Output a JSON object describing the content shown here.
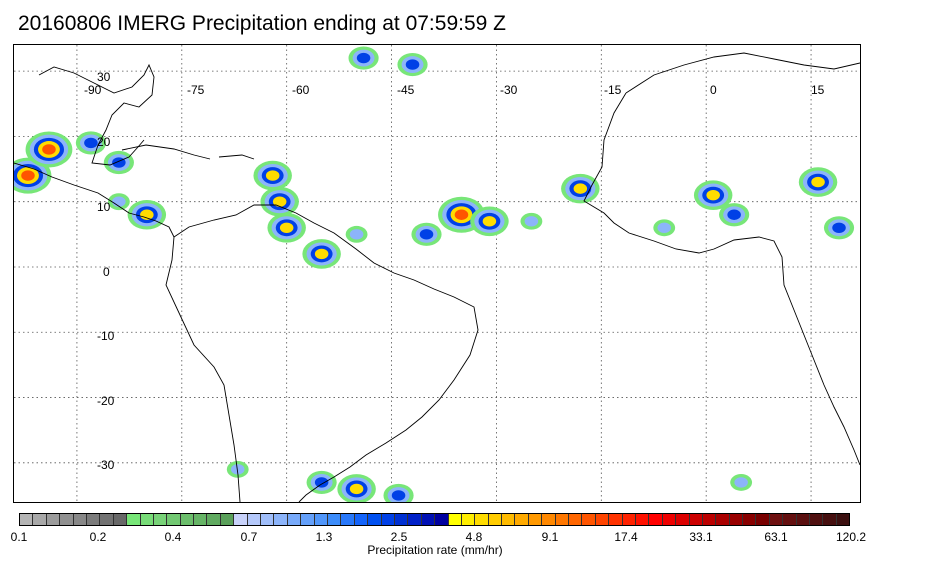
{
  "title": "20160806 IMERG Precipitation ending at 07:59:59 Z",
  "map": {
    "lon_labels": [
      "-90",
      "-75",
      "-60",
      "-45",
      "-30",
      "-15",
      "0",
      "15"
    ],
    "lat_labels": [
      "30",
      "20",
      "10",
      "0",
      "-10",
      "-20",
      "-30"
    ],
    "lon_range": [
      -99,
      22
    ],
    "lat_range": [
      -36,
      34
    ],
    "gridlines": "dotted",
    "coastline_color": "#000000"
  },
  "colorbar": {
    "title": "Precipitation rate (mm/hr)",
    "tick_labels": [
      "0.1",
      "0.2",
      "0.4",
      "0.7",
      "1.3",
      "2.5",
      "4.8",
      "9.1",
      "17.4",
      "33.1",
      "63.1",
      "120.2"
    ],
    "colors": [
      "#b4b4b4",
      "#a8a8a8",
      "#9c9c9c",
      "#909090",
      "#888888",
      "#7c7c7c",
      "#727272",
      "#686868",
      "#78e678",
      "#78dc78",
      "#78d278",
      "#72c872",
      "#6cbe6c",
      "#66b466",
      "#60aa60",
      "#5aa05a",
      "#c8d2fa",
      "#b4c8fa",
      "#a0befa",
      "#8cb4fa",
      "#78aafa",
      "#64a0fa",
      "#5096fa",
      "#3c8cfa",
      "#2878fa",
      "#1464fa",
      "#0050f0",
      "#0040e6",
      "#0030d2",
      "#0020c8",
      "#0010b4",
      "#0000a0",
      "#ffff00",
      "#ffee00",
      "#ffdc00",
      "#ffcc00",
      "#ffbb00",
      "#ffaa00",
      "#ff9900",
      "#ff8800",
      "#ff7700",
      "#ff6600",
      "#ff5500",
      "#ff4400",
      "#ff3300",
      "#ff2200",
      "#ff1100",
      "#ff0000",
      "#ee0000",
      "#dc0000",
      "#cc0000",
      "#bb0000",
      "#aa0000",
      "#990000",
      "#880000",
      "#780000",
      "#6e1010",
      "#641010",
      "#5a1010",
      "#501010",
      "#461010",
      "#3c1010"
    ]
  },
  "precip_cells": [
    {
      "lon": -97,
      "lat": 14,
      "rate": 20
    },
    {
      "lon": -94,
      "lat": 18,
      "rate": 15
    },
    {
      "lon": -88,
      "lat": 19,
      "rate": 5
    },
    {
      "lon": -84,
      "lat": 16,
      "rate": 3
    },
    {
      "lon": -80,
      "lat": 8,
      "rate": 10
    },
    {
      "lon": -84,
      "lat": 10,
      "rate": 2
    },
    {
      "lon": -62,
      "lat": 14,
      "rate": 9
    },
    {
      "lon": -61,
      "lat": 10,
      "rate": 12
    },
    {
      "lon": -60,
      "lat": 6,
      "rate": 8
    },
    {
      "lon": -55,
      "lat": 2,
      "rate": 6
    },
    {
      "lon": -49,
      "lat": 32,
      "rate": 5
    },
    {
      "lon": -42,
      "lat": 31,
      "rate": 4
    },
    {
      "lon": -50,
      "lat": 5,
      "rate": 2
    },
    {
      "lon": -40,
      "lat": 5,
      "rate": 3
    },
    {
      "lon": -35,
      "lat": 8,
      "rate": 18
    },
    {
      "lon": -31,
      "lat": 7,
      "rate": 14
    },
    {
      "lon": -18,
      "lat": 12,
      "rate": 10
    },
    {
      "lon": -25,
      "lat": 7,
      "rate": 2
    },
    {
      "lon": 1,
      "lat": 11,
      "rate": 6
    },
    {
      "lon": 4,
      "lat": 8,
      "rate": 4
    },
    {
      "lon": -6,
      "lat": 6,
      "rate": 2
    },
    {
      "lon": 16,
      "lat": 13,
      "rate": 7
    },
    {
      "lon": 19,
      "lat": 6,
      "rate": 3
    },
    {
      "lon": -55,
      "lat": -33,
      "rate": 5
    },
    {
      "lon": -50,
      "lat": -34,
      "rate": 8
    },
    {
      "lon": -44,
      "lat": -35,
      "rate": 4
    },
    {
      "lon": 5,
      "lat": -33,
      "rate": 2
    },
    {
      "lon": -67,
      "lat": -31,
      "rate": 1
    }
  ]
}
